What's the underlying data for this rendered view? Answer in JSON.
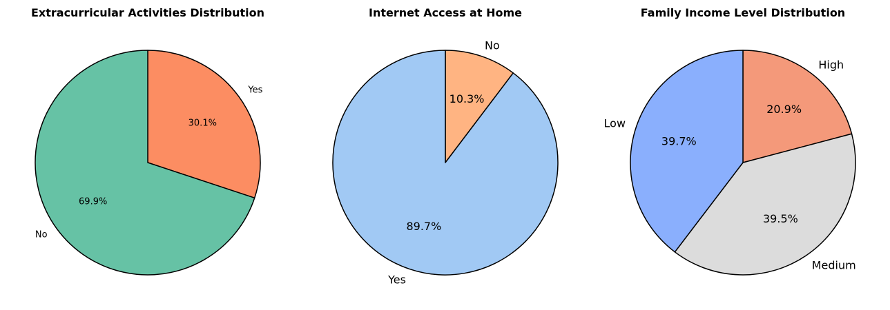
{
  "chart_data": [
    {
      "type": "pie",
      "title": "Extracurricular Activities Distribution",
      "slices": [
        {
          "label": "Yes",
          "value": 30.1,
          "pct_label": "30.1%",
          "color": "#fc8d62"
        },
        {
          "label": "No",
          "value": 69.9,
          "pct_label": "69.9%",
          "color": "#66c2a5"
        }
      ],
      "start_angle_deg": 90,
      "direction": "clockwise"
    },
    {
      "type": "pie",
      "title": "Internet Access at Home",
      "slices": [
        {
          "label": "No",
          "value": 10.3,
          "pct_label": "10.3%",
          "color": "#ffb482"
        },
        {
          "label": "Yes",
          "value": 89.7,
          "pct_label": "89.7%",
          "color": "#a1c9f4"
        }
      ],
      "start_angle_deg": 90,
      "direction": "clockwise"
    },
    {
      "type": "pie",
      "title": "Family Income Level Distribution",
      "slices": [
        {
          "label": "High",
          "value": 20.9,
          "pct_label": "20.9%",
          "color": "#f4997a"
        },
        {
          "label": "Medium",
          "value": 39.5,
          "pct_label": "39.5%",
          "color": "#dcdcdc"
        },
        {
          "label": "Low",
          "value": 39.7,
          "pct_label": "39.7%",
          "color": "#8aaffd"
        }
      ],
      "start_angle_deg": 90,
      "direction": "clockwise"
    }
  ]
}
